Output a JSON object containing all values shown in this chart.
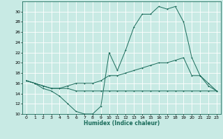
{
  "xlabel": "Humidex (Indice chaleur)",
  "x_ticks": [
    0,
    1,
    2,
    3,
    4,
    5,
    6,
    7,
    8,
    9,
    10,
    11,
    12,
    13,
    14,
    15,
    16,
    17,
    18,
    19,
    20,
    21,
    22,
    23
  ],
  "xlim": [
    -0.5,
    23.5
  ],
  "ylim": [
    10,
    32
  ],
  "y_ticks": [
    10,
    12,
    14,
    16,
    18,
    20,
    22,
    24,
    26,
    28,
    30
  ],
  "bg_color": "#c8eae4",
  "grid_color": "#ffffff",
  "line_color": "#1a6b5a",
  "line1_y": [
    16.5,
    16.0,
    15.0,
    14.5,
    13.5,
    12.0,
    10.5,
    10.0,
    10.0,
    11.5,
    22.0,
    18.5,
    22.5,
    27.0,
    29.5,
    29.5,
    31.0,
    30.5,
    31.0,
    28.0,
    21.0,
    17.5,
    15.5,
    14.5
  ],
  "line2_y": [
    16.5,
    16.0,
    15.5,
    15.0,
    15.0,
    15.0,
    14.5,
    14.5,
    14.5,
    14.5,
    14.5,
    14.5,
    14.5,
    14.5,
    14.5,
    14.5,
    14.5,
    14.5,
    14.5,
    14.5,
    14.5,
    14.5,
    14.5,
    14.5
  ],
  "line3_y": [
    16.5,
    16.0,
    15.5,
    15.0,
    15.0,
    15.5,
    16.0,
    16.0,
    16.0,
    16.5,
    17.5,
    17.5,
    18.0,
    18.5,
    19.0,
    19.5,
    20.0,
    20.0,
    20.5,
    21.0,
    17.5,
    17.5,
    16.0,
    14.5
  ]
}
